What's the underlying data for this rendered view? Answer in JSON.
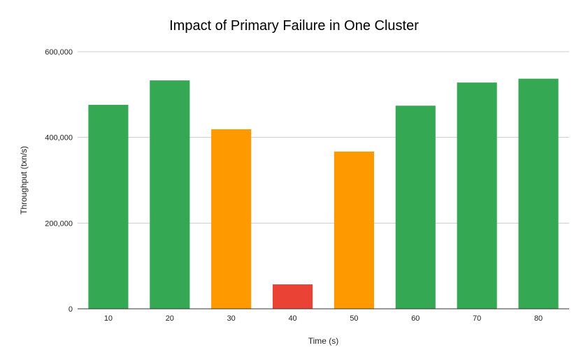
{
  "chart_data": {
    "type": "bar",
    "title": "Impact of Primary Failure in One Cluster",
    "xlabel": "Time (s)",
    "ylabel": "Throughput (txn/s)",
    "categories": [
      "10",
      "20",
      "30",
      "40",
      "50",
      "60",
      "70",
      "80"
    ],
    "values": [
      476000,
      533000,
      419000,
      57000,
      367000,
      474000,
      528000,
      537000
    ],
    "bar_colors": [
      "#34a853",
      "#34a853",
      "#ff9900",
      "#ea4335",
      "#ff9900",
      "#34a853",
      "#34a853",
      "#34a853"
    ],
    "ylim": [
      0,
      600000
    ],
    "yticks": [
      0,
      200000,
      400000,
      600000
    ],
    "ytick_labels": [
      "0",
      "200,000",
      "400,000",
      "600,000"
    ],
    "grid": true,
    "legend": "none"
  }
}
